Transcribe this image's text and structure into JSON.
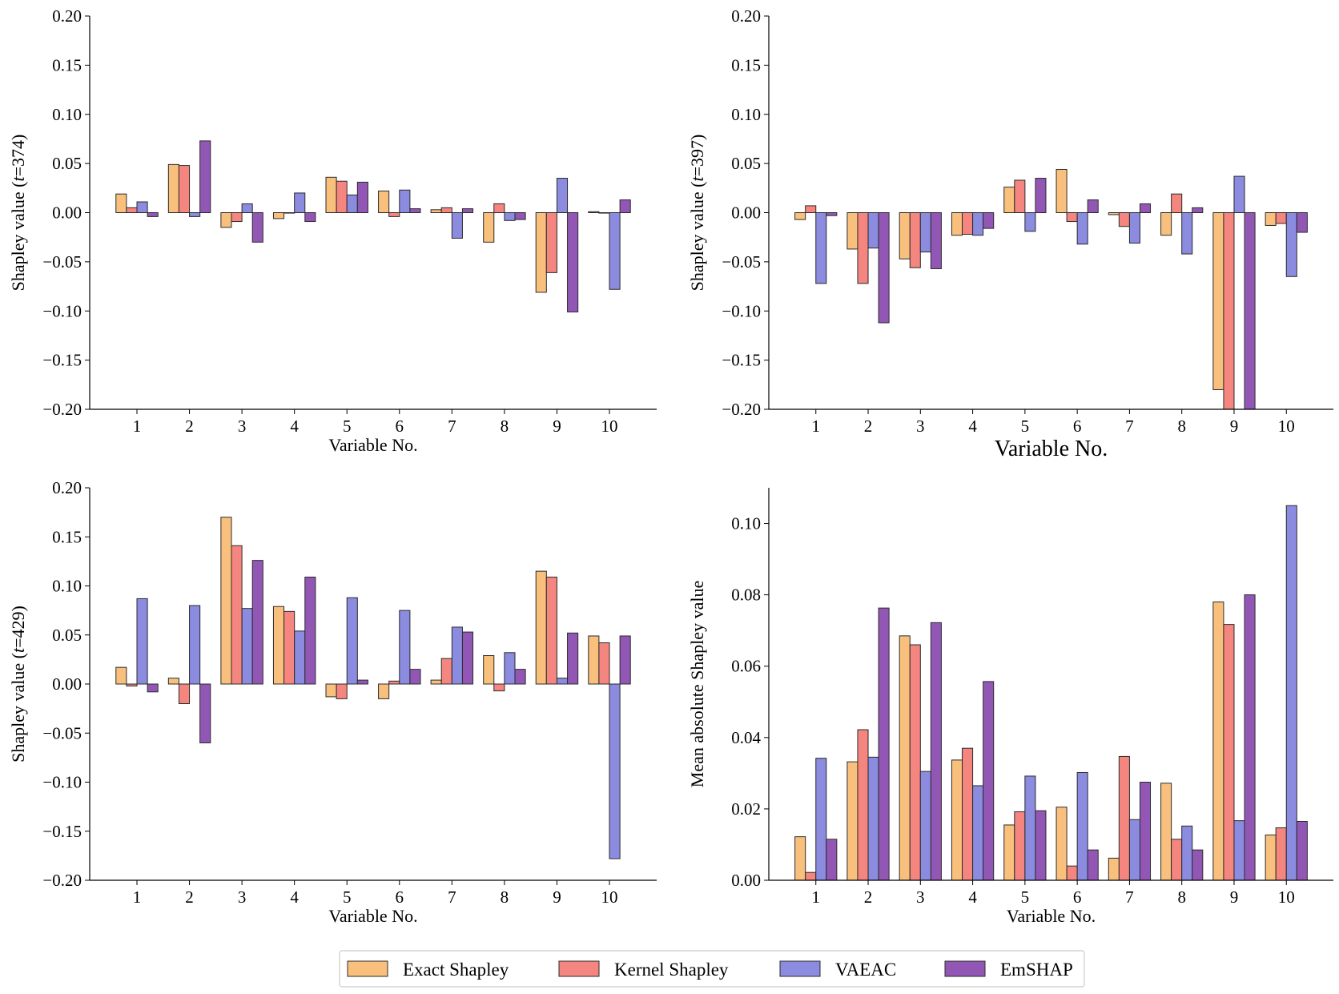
{
  "colors": {
    "Exact Shapley": "#F8C07C",
    "Kernel Shapley": "#F4857F",
    "VAEAC": "#8B8BE0",
    "EmSHAP": "#9257B5",
    "edge": "#2b2b2b"
  },
  "legend": [
    "Exact Shapley",
    "Kernel Shapley",
    "VAEAC",
    "EmSHAP"
  ],
  "chart_data": [
    {
      "type": "bar",
      "panel": "top-left",
      "ylabel_prefix": "Shapley value (",
      "ylabel_var": "t",
      "ylabel_suffix": "=374)",
      "xlabel": "Variable No.",
      "categories": [
        "1",
        "2",
        "3",
        "4",
        "5",
        "6",
        "7",
        "8",
        "9",
        "10"
      ],
      "ylim": [
        -0.2,
        0.2
      ],
      "yticks": [
        -0.2,
        -0.15,
        -0.1,
        -0.05,
        0.0,
        0.05,
        0.1,
        0.15,
        0.2
      ],
      "ytick_labels": [
        "−0.20",
        "−0.15",
        "−0.10",
        "−0.05",
        "0.00",
        "0.05",
        "0.10",
        "0.15",
        "0.20"
      ],
      "series": [
        {
          "name": "Exact Shapley",
          "values": [
            0.019,
            0.049,
            -0.015,
            -0.006,
            0.036,
            0.022,
            0.003,
            -0.03,
            -0.081,
            0.001
          ]
        },
        {
          "name": "Kernel Shapley",
          "values": [
            0.005,
            0.048,
            -0.009,
            0.0,
            0.032,
            -0.004,
            0.005,
            0.009,
            -0.061,
            0.0
          ]
        },
        {
          "name": "VAEAC",
          "values": [
            0.011,
            -0.004,
            0.009,
            0.02,
            0.018,
            0.023,
            -0.026,
            -0.008,
            0.035,
            -0.078
          ]
        },
        {
          "name": "EmSHAP",
          "values": [
            -0.004,
            0.073,
            -0.03,
            -0.009,
            0.031,
            0.004,
            0.004,
            -0.007,
            -0.101,
            0.013
          ]
        }
      ]
    },
    {
      "type": "bar",
      "panel": "top-right",
      "ylabel_prefix": "Shapley value (",
      "ylabel_var": "t",
      "ylabel_suffix": "=397)",
      "xlabel": "Variable No.",
      "categories": [
        "1",
        "2",
        "3",
        "4",
        "5",
        "6",
        "7",
        "8",
        "9",
        "10"
      ],
      "ylim": [
        -0.2,
        0.2
      ],
      "yticks": [
        -0.2,
        -0.15,
        -0.1,
        -0.05,
        0.0,
        0.05,
        0.1,
        0.15,
        0.2
      ],
      "ytick_labels": [
        "−0.20",
        "−0.15",
        "−0.10",
        "−0.05",
        "0.00",
        "0.05",
        "0.10",
        "0.15",
        "0.20"
      ],
      "series": [
        {
          "name": "Exact Shapley",
          "values": [
            -0.007,
            -0.037,
            -0.047,
            -0.023,
            0.026,
            0.044,
            -0.002,
            -0.023,
            -0.18,
            -0.013
          ]
        },
        {
          "name": "Kernel Shapley",
          "values": [
            0.007,
            -0.072,
            -0.056,
            -0.022,
            0.033,
            -0.009,
            -0.014,
            0.019,
            -0.2,
            -0.011
          ]
        },
        {
          "name": "VAEAC",
          "values": [
            -0.072,
            -0.036,
            -0.04,
            -0.023,
            -0.019,
            -0.032,
            -0.031,
            -0.042,
            0.037,
            -0.065
          ]
        },
        {
          "name": "EmSHAP",
          "values": [
            -0.003,
            -0.112,
            -0.057,
            -0.016,
            0.035,
            0.013,
            0.009,
            0.005,
            -0.2,
            -0.02
          ]
        }
      ]
    },
    {
      "type": "bar",
      "panel": "bottom-left",
      "ylabel_prefix": "Shapley value (",
      "ylabel_var": "t",
      "ylabel_suffix": "=429)",
      "xlabel": "Variable No.",
      "categories": [
        "1",
        "2",
        "3",
        "4",
        "5",
        "6",
        "7",
        "8",
        "9",
        "10"
      ],
      "ylim": [
        -0.2,
        0.2
      ],
      "yticks": [
        -0.2,
        -0.15,
        -0.1,
        -0.05,
        0.0,
        0.05,
        0.1,
        0.15,
        0.2
      ],
      "ytick_labels": [
        "−0.20",
        "−0.15",
        "−0.10",
        "−0.05",
        "0.00",
        "0.05",
        "0.10",
        "0.15",
        "0.20"
      ],
      "series": [
        {
          "name": "Exact Shapley",
          "values": [
            0.017,
            0.006,
            0.17,
            0.079,
            -0.013,
            -0.015,
            0.004,
            0.029,
            0.115,
            0.049
          ]
        },
        {
          "name": "Kernel Shapley",
          "values": [
            -0.002,
            -0.02,
            0.141,
            0.074,
            -0.015,
            0.003,
            0.026,
            -0.007,
            0.109,
            0.042
          ]
        },
        {
          "name": "VAEAC",
          "values": [
            0.087,
            0.08,
            0.077,
            0.054,
            0.088,
            0.075,
            0.058,
            0.032,
            0.006,
            -0.178
          ]
        },
        {
          "name": "EmSHAP",
          "values": [
            -0.008,
            -0.06,
            0.126,
            0.109,
            0.004,
            0.015,
            0.053,
            0.015,
            0.052,
            0.049
          ]
        }
      ]
    },
    {
      "type": "bar",
      "panel": "bottom-right",
      "ylabel": "Mean absolute Shapley value",
      "xlabel": "Variable No.",
      "categories": [
        "1",
        "2",
        "3",
        "4",
        "5",
        "6",
        "7",
        "8",
        "9",
        "10"
      ],
      "ylim": [
        0.0,
        0.11
      ],
      "yticks": [
        0.0,
        0.02,
        0.04,
        0.06,
        0.08,
        0.1
      ],
      "ytick_labels": [
        "0.00",
        "0.02",
        "0.04",
        "0.06",
        "0.08",
        "0.10"
      ],
      "series": [
        {
          "name": "Exact Shapley",
          "values": [
            0.0122,
            0.0332,
            0.0685,
            0.0337,
            0.0155,
            0.0205,
            0.0062,
            0.0272,
            0.078,
            0.0127
          ]
        },
        {
          "name": "Kernel Shapley",
          "values": [
            0.0022,
            0.0422,
            0.066,
            0.037,
            0.0192,
            0.004,
            0.0347,
            0.0115,
            0.0717,
            0.0147
          ]
        },
        {
          "name": "VAEAC",
          "values": [
            0.0342,
            0.0345,
            0.0305,
            0.0265,
            0.0292,
            0.0302,
            0.017,
            0.0152,
            0.0167,
            0.105
          ]
        },
        {
          "name": "EmSHAP",
          "values": [
            0.0115,
            0.0763,
            0.0722,
            0.0557,
            0.0195,
            0.0085,
            0.0275,
            0.0085,
            0.08,
            0.0165
          ]
        }
      ]
    }
  ]
}
